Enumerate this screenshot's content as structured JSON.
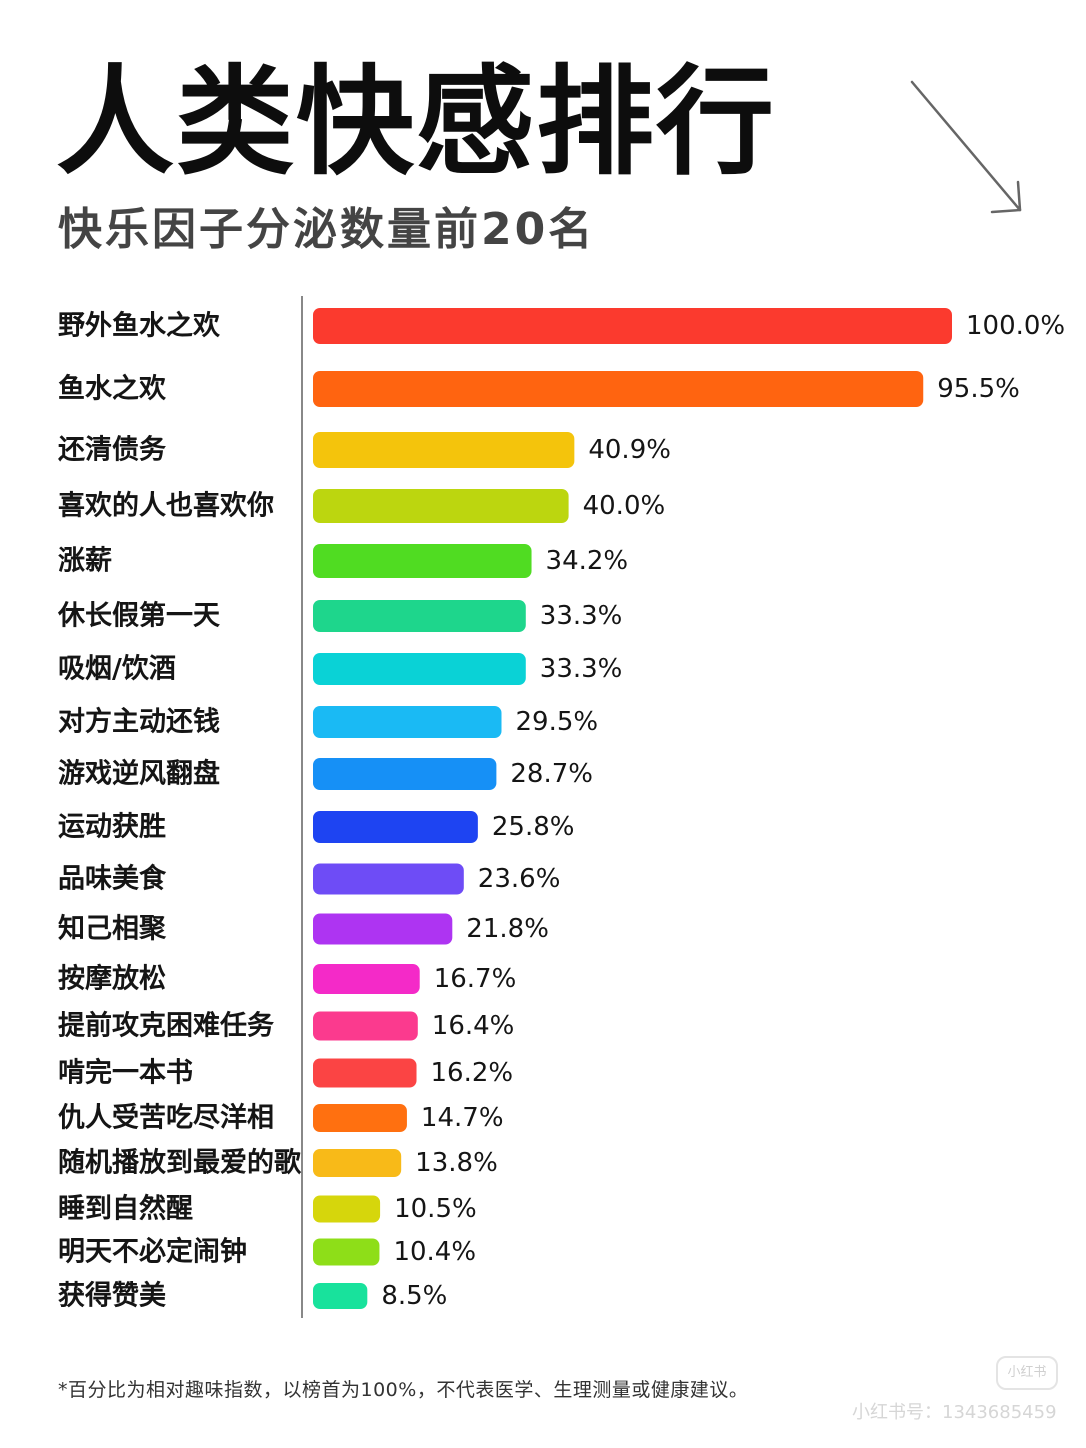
{
  "title": "人类快感排行",
  "subtitle": "快乐因子分泌数量前20名",
  "footnote": "*百分比为相对趣味指数，以榜首为100%，不代表医学、生理测量或健康建议。",
  "watermark": "小红书号：1343685459",
  "watermark_badge": "小红书",
  "arrow_icon": "arrow-down-right-icon",
  "chart_data": {
    "type": "bar",
    "orientation": "horizontal",
    "title": "",
    "xlabel": "",
    "ylabel": "",
    "xlim": [
      0,
      100
    ],
    "grid": false,
    "legend": "none",
    "value_suffix": "%",
    "categories": [
      "野外鱼水之欢",
      "鱼水之欢",
      "还清债务",
      "喜欢的人也喜欢你",
      "涨薪",
      "休长假第一天",
      "吸烟/饮酒",
      "对方主动还钱",
      "游戏逆风翻盘",
      "运动获胜",
      "品味美食",
      "知己相聚",
      "按摩放松",
      "提前攻克困难任务",
      "啃完一本书",
      "仇人受苦吃尽洋相",
      "随机播放到最爱的歌",
      "睡到自然醒",
      "明天不必定闹钟",
      "获得赞美"
    ],
    "values": [
      100.0,
      95.5,
      40.9,
      40.0,
      34.2,
      33.3,
      33.3,
      29.5,
      28.7,
      25.8,
      23.6,
      21.8,
      16.7,
      16.4,
      16.2,
      14.7,
      13.8,
      10.5,
      10.4,
      8.5
    ],
    "value_labels": [
      "100.0%",
      "95.5%",
      "40.9%",
      "40.0%",
      "34.2%",
      "33.3%",
      "33.3%",
      "29.5%",
      "28.7%",
      "25.8%",
      "23.6%",
      "21.8%",
      "16.7%",
      "16.4%",
      "16.2%",
      "14.7%",
      "13.8%",
      "10.5%",
      "10.4%",
      "8.5%"
    ],
    "colors": [
      "#fb3a2e",
      "#ff6410",
      "#f4c40c",
      "#bcd60f",
      "#50dc22",
      "#1ed68c",
      "#0ad2d6",
      "#1abaf4",
      "#1690f6",
      "#1e44f2",
      "#6e4cf6",
      "#ae34f2",
      "#f42ac8",
      "#fb3a8e",
      "#fb4444",
      "#ff7010",
      "#f8ba18",
      "#d6d60c",
      "#8ede18",
      "#18e29c"
    ]
  }
}
